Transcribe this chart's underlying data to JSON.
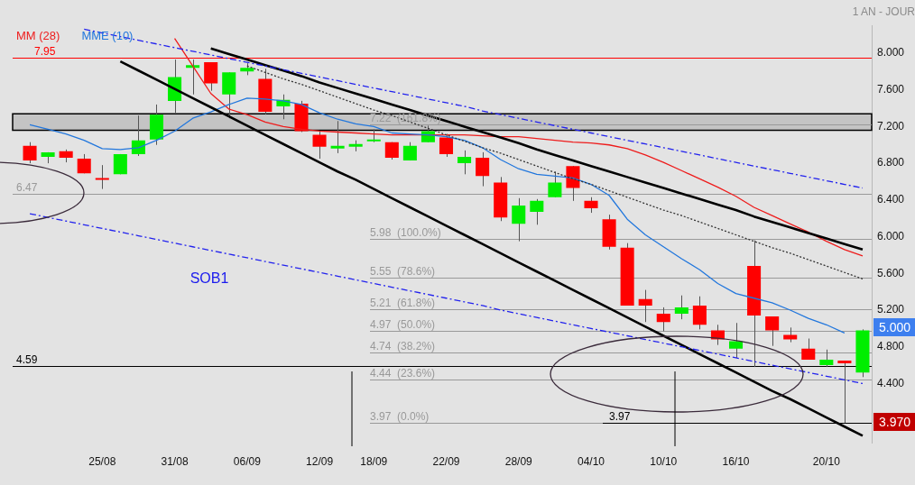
{
  "chart_data": {
    "type": "candlestick",
    "subtitle": "1 AN - JOUR",
    "categories": [
      null,
      null,
      null,
      null,
      "25/08",
      null,
      null,
      null,
      "31/08",
      null,
      null,
      null,
      "06/09",
      null,
      null,
      null,
      "12/09",
      null,
      null,
      "18/09",
      null,
      null,
      null,
      "22/09",
      null,
      null,
      null,
      "28/09",
      null,
      null,
      null,
      "04/10",
      null,
      null,
      null,
      "10/10",
      null,
      null,
      null,
      "16/10",
      null,
      null,
      null,
      null,
      "20/10",
      null,
      null
    ],
    "ohlc": [
      [
        6.99,
        7.03,
        6.8,
        6.83
      ],
      [
        6.87,
        6.92,
        6.8,
        6.92
      ],
      [
        6.93,
        6.95,
        6.81,
        6.86
      ],
      [
        6.85,
        6.9,
        6.69,
        6.69
      ],
      [
        6.63,
        6.78,
        6.52,
        6.62
      ],
      [
        6.68,
        6.9,
        6.68,
        6.9
      ],
      [
        6.9,
        7.32,
        6.88,
        7.05
      ],
      [
        7.06,
        7.44,
        7.0,
        7.33
      ],
      [
        7.48,
        7.93,
        7.35,
        7.74
      ],
      [
        7.84,
        7.93,
        7.55,
        7.87
      ],
      [
        7.9,
        7.9,
        7.59,
        7.67
      ],
      [
        7.55,
        7.79,
        7.29,
        7.79
      ],
      [
        7.8,
        7.89,
        7.76,
        7.84
      ],
      [
        7.72,
        7.83,
        7.33,
        7.36
      ],
      [
        7.42,
        7.55,
        7.28,
        7.49
      ],
      [
        7.45,
        7.48,
        7.14,
        7.15
      ],
      [
        7.11,
        7.15,
        6.85,
        6.98
      ],
      [
        6.96,
        7.26,
        6.91,
        6.99
      ],
      [
        6.98,
        7.05,
        6.93,
        7.01
      ],
      [
        7.04,
        7.17,
        7.03,
        7.04
      ],
      [
        7.03,
        7.03,
        6.84,
        6.86
      ],
      [
        6.83,
        7.03,
        6.83,
        6.99
      ],
      [
        7.03,
        7.21,
        7.03,
        7.15
      ],
      [
        7.08,
        7.12,
        6.87,
        6.9
      ],
      [
        6.8,
        6.94,
        6.68,
        6.87
      ],
      [
        6.86,
        6.92,
        6.55,
        6.66
      ],
      [
        6.59,
        6.65,
        6.17,
        6.21
      ],
      [
        6.14,
        6.42,
        5.95,
        6.34
      ],
      [
        6.27,
        6.41,
        6.13,
        6.39
      ],
      [
        6.43,
        6.71,
        6.43,
        6.59
      ],
      [
        6.77,
        6.77,
        6.39,
        6.53
      ],
      [
        6.39,
        6.43,
        6.26,
        6.31
      ],
      [
        6.19,
        6.24,
        5.86,
        5.89
      ],
      [
        5.88,
        5.93,
        5.25,
        5.25
      ],
      [
        5.32,
        5.42,
        5.07,
        5.25
      ],
      [
        5.16,
        5.23,
        4.97,
        5.07
      ],
      [
        5.16,
        5.36,
        5.1,
        5.23
      ],
      [
        5.25,
        5.35,
        4.99,
        5.04
      ],
      [
        4.98,
        5.04,
        4.82,
        4.88
      ],
      [
        4.78,
        5.06,
        4.68,
        4.86
      ],
      [
        5.68,
        5.96,
        4.58,
        5.14
      ],
      [
        5.13,
        5.13,
        4.81,
        4.98
      ],
      [
        4.93,
        5.01,
        4.85,
        4.88
      ],
      [
        4.78,
        4.89,
        4.66,
        4.66
      ],
      [
        4.6,
        4.77,
        4.58,
        4.66
      ],
      [
        4.65,
        4.65,
        3.97,
        4.62
      ],
      [
        4.52,
        4.99,
        4.47,
        4.98
      ]
    ],
    "colors": [
      "#ff0000",
      "#00ee00",
      "#ff0000",
      "#ff0000",
      "#ff0000",
      "#00ee00",
      "#00ee00",
      "#00ee00",
      "#00ee00",
      "#00ee00",
      "#ff0000",
      "#00ee00",
      "#00ee00",
      "#ff0000",
      "#00ee00",
      "#ff0000",
      "#ff0000",
      "#00ee00",
      "#00ee00",
      "#00ee00",
      "#ff0000",
      "#00ee00",
      "#00ee00",
      "#ff0000",
      "#00ee00",
      "#ff0000",
      "#ff0000",
      "#00ee00",
      "#00ee00",
      "#00ee00",
      "#ff0000",
      "#ff0000",
      "#ff0000",
      "#ff0000",
      "#ff0000",
      "#ff0000",
      "#00ee00",
      "#ff0000",
      "#ff0000",
      "#00ee00",
      "#ff0000",
      "#ff0000",
      "#ff0000",
      "#ff0000",
      "#00ee00",
      "#ff0000",
      "#00ee00"
    ],
    "series": [
      {
        "type": "line",
        "name": "MM (28)",
        "color": "#ee1c1c",
        "line_style": "solid",
        "values": [
          null,
          null,
          null,
          null,
          null,
          null,
          null,
          null,
          8.16,
          7.86,
          7.56,
          7.39,
          7.33,
          7.25,
          7.2,
          7.17,
          7.15,
          7.14,
          7.13,
          7.12,
          7.11,
          7.11,
          7.11,
          7.11,
          7.11,
          7.1,
          7.09,
          7.09,
          7.07,
          7.05,
          7.03,
          7.02,
          7.0,
          6.96,
          6.89,
          6.81,
          6.72,
          6.63,
          6.54,
          6.44,
          6.32,
          6.23,
          6.14,
          6.05,
          5.95,
          5.86,
          5.79
        ]
      },
      {
        "type": "line",
        "name": "MME (10)",
        "color": "#2277dd",
        "line_style": "solid",
        "values": [
          7.22,
          7.17,
          7.12,
          7.05,
          6.96,
          6.95,
          6.97,
          7.05,
          7.15,
          7.29,
          7.36,
          7.44,
          7.51,
          7.5,
          7.48,
          7.44,
          7.35,
          7.28,
          7.23,
          7.2,
          7.13,
          7.12,
          7.11,
          7.09,
          7.05,
          6.97,
          6.84,
          6.74,
          6.68,
          6.66,
          6.64,
          6.57,
          6.45,
          6.19,
          6.02,
          5.89,
          5.76,
          5.64,
          5.49,
          5.38,
          5.33,
          5.28,
          5.2,
          5.11,
          5.04,
          4.95,
          null
        ]
      },
      {
        "type": "line",
        "color": "#000000",
        "line_style": "solid",
        "values": [
          null,
          null,
          null,
          null,
          null,
          7.91,
          7.81,
          7.71,
          7.61,
          7.51,
          7.41,
          7.31,
          7.21,
          7.11,
          7.01,
          6.91,
          6.81,
          6.71,
          6.62,
          6.52,
          6.42,
          6.32,
          6.22,
          6.12,
          6.02,
          5.92,
          5.82,
          5.72,
          5.62,
          5.52,
          5.42,
          5.32,
          5.22,
          5.12,
          5.02,
          4.92,
          4.82,
          4.72,
          4.62,
          4.52,
          4.42,
          4.32,
          4.23,
          4.13,
          4.03,
          3.93,
          3.83
        ]
      },
      {
        "type": "line",
        "color": "#000000",
        "line_style": "solid",
        "values": [
          null,
          null,
          null,
          null,
          null,
          null,
          null,
          null,
          null,
          null,
          8.05,
          7.99,
          7.93,
          7.87,
          7.81,
          7.75,
          7.68,
          7.62,
          7.56,
          7.5,
          7.44,
          7.38,
          7.32,
          7.26,
          7.2,
          7.14,
          7.08,
          7.02,
          6.95,
          6.89,
          6.83,
          6.77,
          6.71,
          6.65,
          6.59,
          6.53,
          6.47,
          6.41,
          6.35,
          6.29,
          6.22,
          6.16,
          6.1,
          6.04,
          5.98,
          5.92,
          5.86
        ]
      },
      {
        "type": "line",
        "color": "#333333",
        "line_style": "dotted",
        "values": [
          null,
          null,
          null,
          null,
          null,
          null,
          null,
          null,
          null,
          null,
          null,
          null,
          7.86,
          7.79,
          7.72,
          7.66,
          7.59,
          7.52,
          7.45,
          7.38,
          7.32,
          7.25,
          7.18,
          7.11,
          7.04,
          6.97,
          6.91,
          6.84,
          6.77,
          6.7,
          6.63,
          6.57,
          6.5,
          6.43,
          6.36,
          6.29,
          6.23,
          6.16,
          6.09,
          6.02,
          5.95,
          5.88,
          5.82,
          5.75,
          5.68,
          5.61,
          5.54
        ]
      },
      {
        "type": "line",
        "color": "#2222ee",
        "line_style": "dashed",
        "values": [
          null,
          null,
          null,
          8.26,
          8.22,
          8.18,
          8.14,
          8.1,
          8.06,
          8.02,
          7.98,
          7.94,
          7.9,
          7.86,
          7.82,
          7.78,
          7.74,
          7.7,
          7.66,
          7.62,
          7.58,
          7.54,
          7.5,
          7.46,
          7.42,
          7.37,
          7.33,
          7.29,
          7.25,
          7.21,
          7.17,
          7.13,
          7.09,
          7.05,
          7.01,
          6.97,
          6.93,
          6.89,
          6.85,
          6.81,
          6.77,
          6.73,
          6.69,
          6.65,
          6.61,
          6.57,
          6.53
        ]
      },
      {
        "type": "line",
        "color": "#2222ee",
        "line_style": "dashed",
        "values": [
          6.25,
          6.21,
          6.17,
          6.13,
          6.09,
          6.05,
          6.01,
          5.97,
          5.93,
          5.89,
          5.85,
          5.81,
          5.77,
          5.73,
          5.69,
          5.65,
          5.61,
          5.57,
          5.53,
          5.49,
          5.45,
          5.41,
          5.37,
          5.33,
          5.29,
          5.25,
          5.2,
          5.16,
          5.12,
          5.08,
          5.04,
          5.0,
          4.96,
          4.92,
          4.88,
          4.84,
          4.8,
          4.76,
          4.72,
          4.68,
          4.64,
          4.6,
          4.56,
          4.52,
          4.48,
          4.44,
          4.4
        ]
      }
    ],
    "ylim": [
      3.75,
      8.3
    ],
    "yticks": [
      {
        "value": 4.4,
        "label": "4.400"
      },
      {
        "value": 4.8,
        "label": "4.800"
      },
      {
        "value": 5.2,
        "label": "5.200"
      },
      {
        "value": 5.6,
        "label": "5.600"
      },
      {
        "value": 6,
        "label": "6.000"
      },
      {
        "value": 6.4,
        "label": "6.400"
      },
      {
        "value": 6.8,
        "label": "6.800"
      },
      {
        "value": 7.2,
        "label": "7.200"
      },
      {
        "value": 7.6,
        "label": "7.600"
      },
      {
        "value": 8,
        "label": "8.000"
      }
    ],
    "ref_lines": [
      {
        "axis": "y",
        "value": 7.95,
        "label": "7.95",
        "color": "#ff0000",
        "line_style": "solid"
      },
      {
        "axis": "y",
        "value": 6.47,
        "label": "6.47",
        "color": "#999999",
        "line_style": "solid"
      },
      {
        "axis": "y",
        "value": 4.59,
        "label": "4.59",
        "color": "#000000",
        "line_style": "solid"
      },
      {
        "axis": "y",
        "value": 3.97,
        "label": "3.97",
        "color": "#000000",
        "line_style": "solid"
      },
      {
        "axis": "y",
        "value": 7.22,
        "label": "7.22  (161.8%)",
        "color": "#999999",
        "line_style": "solid"
      },
      {
        "axis": "y",
        "value": 5.98,
        "label": "5.98  (100.0%)",
        "color": "#999999",
        "line_style": "solid"
      },
      {
        "axis": "y",
        "value": 5.55,
        "label": "5.55  (78.6%)",
        "color": "#999999",
        "line_style": "solid"
      },
      {
        "axis": "y",
        "value": 5.21,
        "label": "5.21  (61.8%)",
        "color": "#999999",
        "line_style": "solid"
      },
      {
        "axis": "y",
        "value": 4.97,
        "label": "4.97  (50.0%)",
        "color": "#999999",
        "line_style": "solid"
      },
      {
        "axis": "y",
        "value": 4.74,
        "label": "4.74  (38.2%)",
        "color": "#999999",
        "line_style": "solid"
      },
      {
        "axis": "y",
        "value": 4.44,
        "label": "4.44  (23.6%)",
        "color": "#999999",
        "line_style": "solid"
      },
      {
        "axis": "y",
        "value": 3.97,
        "label": "3.97  (0.0%)",
        "color": "#999999",
        "line_style": "solid"
      }
    ],
    "bands": [
      {
        "axis": "y",
        "from": 7.16,
        "to": 7.34,
        "color": "#c4c4c4"
      }
    ],
    "annotations": [
      "SOB1",
      "5.000",
      "3.970"
    ],
    "legend": "top left",
    "grid": false,
    "marker": "none"
  }
}
